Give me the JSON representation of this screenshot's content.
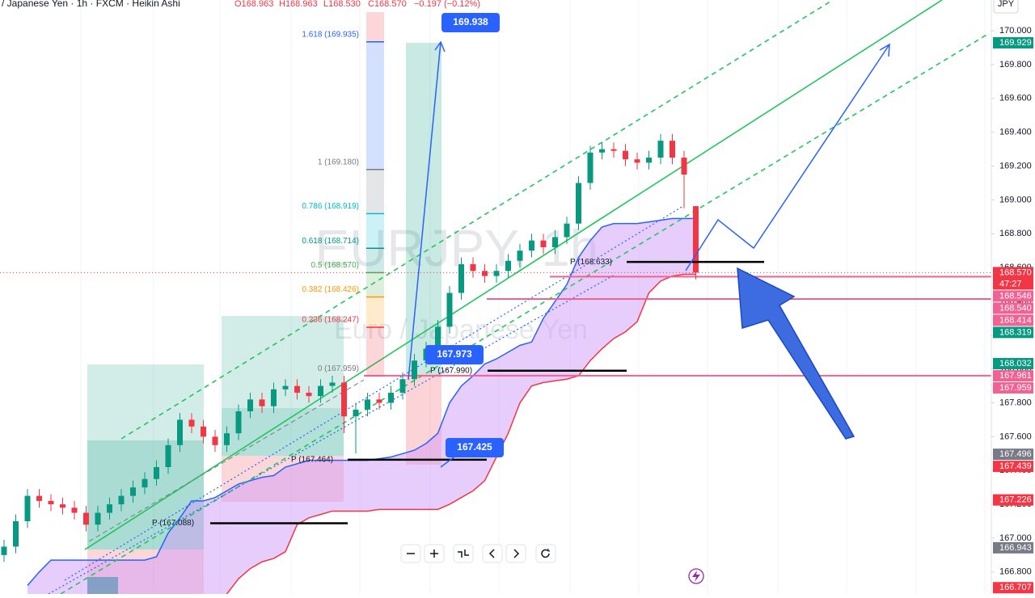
{
  "header": {
    "symbol": "/ Japanese Yen · 1h · FXCM · Heikin Ashi",
    "open": "O168.963",
    "high": "H168.963",
    "low": "L168.530",
    "close": "C168.570",
    "change": "−0.197 (−0.12%)",
    "currency": "JPY"
  },
  "watermark": {
    "ticker": "EURJPY, 1h",
    "name": "Euro / Japanese Yen"
  },
  "chart_data": {
    "type": "candlestick",
    "open": [
      166.9,
      166.95,
      167.1,
      167.25,
      167.22,
      167.2,
      167.18,
      167.15,
      167.08,
      167.15,
      167.2,
      167.25,
      167.3,
      167.35,
      167.42,
      167.55,
      167.7,
      167.66,
      167.6,
      167.55,
      167.62,
      167.75,
      167.82,
      167.78,
      167.88,
      167.9,
      167.86,
      167.84,
      167.9,
      167.92,
      167.72,
      167.76,
      167.82,
      167.8,
      167.86,
      167.94,
      168.05,
      168.12,
      168.25,
      168.45,
      168.62,
      168.58,
      168.55,
      168.58,
      168.64,
      168.7,
      168.76,
      168.72,
      168.78,
      168.86,
      169.1,
      169.28,
      169.3,
      169.29,
      169.24,
      169.22,
      169.25,
      169.35,
      169.25,
      168.963
    ],
    "high": [
      166.99,
      167.14,
      167.29,
      167.29,
      167.26,
      167.24,
      167.22,
      167.19,
      167.19,
      167.24,
      167.29,
      167.34,
      167.39,
      167.46,
      167.59,
      167.74,
      167.74,
      167.7,
      167.64,
      167.66,
      167.79,
      167.86,
      167.86,
      167.92,
      167.94,
      167.94,
      167.9,
      167.94,
      167.96,
      167.96,
      167.8,
      167.86,
      167.86,
      167.9,
      167.98,
      168.09,
      168.16,
      168.29,
      168.49,
      168.66,
      168.66,
      168.62,
      168.62,
      168.68,
      168.74,
      168.8,
      168.8,
      168.82,
      168.9,
      169.14,
      169.32,
      169.34,
      169.34,
      169.33,
      169.28,
      169.29,
      169.39,
      169.39,
      169.29,
      168.963
    ],
    "low": [
      166.86,
      166.91,
      167.06,
      167.18,
      167.16,
      167.14,
      167.11,
      167.04,
      167.04,
      167.11,
      167.16,
      167.21,
      167.26,
      167.31,
      167.38,
      167.51,
      167.62,
      167.56,
      167.51,
      167.51,
      167.58,
      167.71,
      167.74,
      167.74,
      167.84,
      167.82,
      167.8,
      167.8,
      167.86,
      167.62,
      167.5,
      167.72,
      167.76,
      167.76,
      167.82,
      167.9,
      168.01,
      168.08,
      168.21,
      168.41,
      168.54,
      168.51,
      168.51,
      168.54,
      168.6,
      168.66,
      168.68,
      168.68,
      168.74,
      168.82,
      169.06,
      169.24,
      169.25,
      169.2,
      169.18,
      169.18,
      169.21,
      169.21,
      168.95,
      168.53
    ],
    "close": [
      166.95,
      167.1,
      167.25,
      167.22,
      167.2,
      167.18,
      167.15,
      167.08,
      167.15,
      167.2,
      167.25,
      167.3,
      167.35,
      167.42,
      167.55,
      167.7,
      167.66,
      167.6,
      167.55,
      167.62,
      167.75,
      167.82,
      167.78,
      167.88,
      167.9,
      167.86,
      167.84,
      167.9,
      167.92,
      167.72,
      167.76,
      167.82,
      167.8,
      167.86,
      167.94,
      168.05,
      168.12,
      168.25,
      168.45,
      168.62,
      168.58,
      168.55,
      168.58,
      168.64,
      168.7,
      168.76,
      168.72,
      168.78,
      168.86,
      169.1,
      169.28,
      169.3,
      169.29,
      169.24,
      169.22,
      169.25,
      169.35,
      169.25,
      169.15,
      168.57
    ],
    "up_color": "#089981",
    "down_color": "#f23645",
    "cloud": {
      "upper": [
        null,
        null,
        166.72,
        166.8,
        166.87,
        166.87,
        166.87,
        166.87,
        166.87,
        166.87,
        166.87,
        166.87,
        166.87,
        166.89,
        167.03,
        167.12,
        167.22,
        167.22,
        167.24,
        167.28,
        167.32,
        167.34,
        167.36,
        167.37,
        167.42,
        167.44,
        167.46,
        167.46,
        167.46,
        167.46,
        167.46,
        167.46,
        167.47,
        167.48,
        167.5,
        167.52,
        167.56,
        167.62,
        167.8,
        167.9,
        167.96,
        168.03,
        168.06,
        168.1,
        168.14,
        168.16,
        168.3,
        168.4,
        168.5,
        168.66,
        168.76,
        168.84,
        168.86,
        168.86,
        168.86,
        168.87,
        168.88,
        168.89,
        168.89,
        168.89
      ],
      "lower": [
        null,
        null,
        null,
        null,
        null,
        null,
        null,
        null,
        null,
        null,
        null,
        null,
        null,
        null,
        null,
        null,
        null,
        null,
        null,
        166.67,
        166.76,
        166.82,
        166.86,
        166.88,
        166.92,
        167.08,
        167.12,
        167.14,
        167.16,
        167.16,
        167.16,
        167.16,
        167.17,
        167.17,
        167.17,
        167.17,
        167.17,
        167.17,
        167.2,
        167.24,
        167.28,
        167.34,
        167.48,
        167.62,
        167.8,
        167.9,
        167.92,
        167.93,
        167.94,
        167.96,
        168.05,
        168.12,
        168.18,
        168.22,
        168.28,
        168.45,
        168.52,
        168.55,
        168.56,
        168.56
      ],
      "upper_color": "#2962ff",
      "lower_color": "#f23645",
      "fill": "#cf9bf7"
    },
    "ylim": [
      166.67,
      170.182
    ],
    "yticks": [
      {
        "value": 166.8,
        "label": "166.800"
      },
      {
        "value": 167.0,
        "label": "167.000"
      },
      {
        "value": 167.2,
        "label": "167.200"
      },
      {
        "value": 167.4,
        "label": "167.400"
      },
      {
        "value": 167.6,
        "label": "167.600"
      },
      {
        "value": 167.8,
        "label": "167.800"
      },
      {
        "value": 168.0,
        "label": "168.000"
      },
      {
        "value": 168.2,
        "label": "168.200"
      },
      {
        "value": 168.4,
        "label": "168.400"
      },
      {
        "value": 168.6,
        "label": "168.600"
      },
      {
        "value": 168.8,
        "label": "168.800"
      },
      {
        "value": 169.0,
        "label": "169.000"
      },
      {
        "value": 169.2,
        "label": "169.200"
      },
      {
        "value": 169.4,
        "label": "169.400"
      },
      {
        "value": 169.6,
        "label": "169.600"
      },
      {
        "value": 169.8,
        "label": "169.800"
      },
      {
        "value": 170.0,
        "label": "170.000"
      }
    ],
    "grid": true,
    "price_labels": [
      {
        "value": 169.929,
        "color": "#089981"
      },
      {
        "value": 168.57,
        "label": "168.570",
        "color": "#f23645",
        "sub": "47:27"
      },
      {
        "value": 168.546,
        "color": "#f06292"
      },
      {
        "value": 168.54,
        "label": "168.540",
        "color": "#f06292"
      },
      {
        "value": 168.414,
        "color": "#f06292"
      },
      {
        "value": 168.319,
        "color": "#089981"
      },
      {
        "value": 168.032,
        "color": "#089981"
      },
      {
        "value": 167.961,
        "color": "#f06292"
      },
      {
        "value": 167.959,
        "color": "#f06292"
      },
      {
        "value": 167.496,
        "color": "#787b86"
      },
      {
        "value": 167.439,
        "color": "#f23645"
      },
      {
        "value": 167.226,
        "color": "#f23645"
      },
      {
        "value": 166.943,
        "color": "#787b86"
      },
      {
        "value": 166.707,
        "color": "#f23645"
      }
    ],
    "levels": [
      {
        "value": 168.546,
        "color": "#f06292"
      },
      {
        "value": 168.414,
        "color": "#f06292"
      },
      {
        "value": 167.961,
        "color": "#f06292"
      }
    ],
    "fib": [
      {
        "label": "1.618 (169.935)",
        "value": 169.935,
        "color": "#2962ff"
      },
      {
        "label": "1 (169.180)",
        "value": 169.18,
        "color": "#787b86"
      },
      {
        "label": "0.786 (168.919)",
        "value": 168.919,
        "color": "#00bcd4"
      },
      {
        "label": "0.618 (168.714)",
        "value": 168.714,
        "color": "#009688"
      },
      {
        "label": "0.5 (168.570)",
        "value": 168.57,
        "color": "#4caf50"
      },
      {
        "label": "0.382 (168.426)",
        "value": 168.426,
        "color": "#ff9800"
      },
      {
        "label": "0.236 (168.247)",
        "value": 168.247,
        "color": "#f23645"
      },
      {
        "label": "0 (167.959)",
        "value": 167.959,
        "color": "#787b86"
      }
    ],
    "pivots": [
      {
        "label": "P (168.633)",
        "value": 168.633
      },
      {
        "label": "P (167.990)",
        "value": 167.99
      },
      {
        "label": "P (167.464)",
        "value": 167.464
      },
      {
        "label": "P (167.088)",
        "value": 167.088
      }
    ],
    "callouts": [
      169.938,
      167.973,
      167.425
    ]
  }
}
